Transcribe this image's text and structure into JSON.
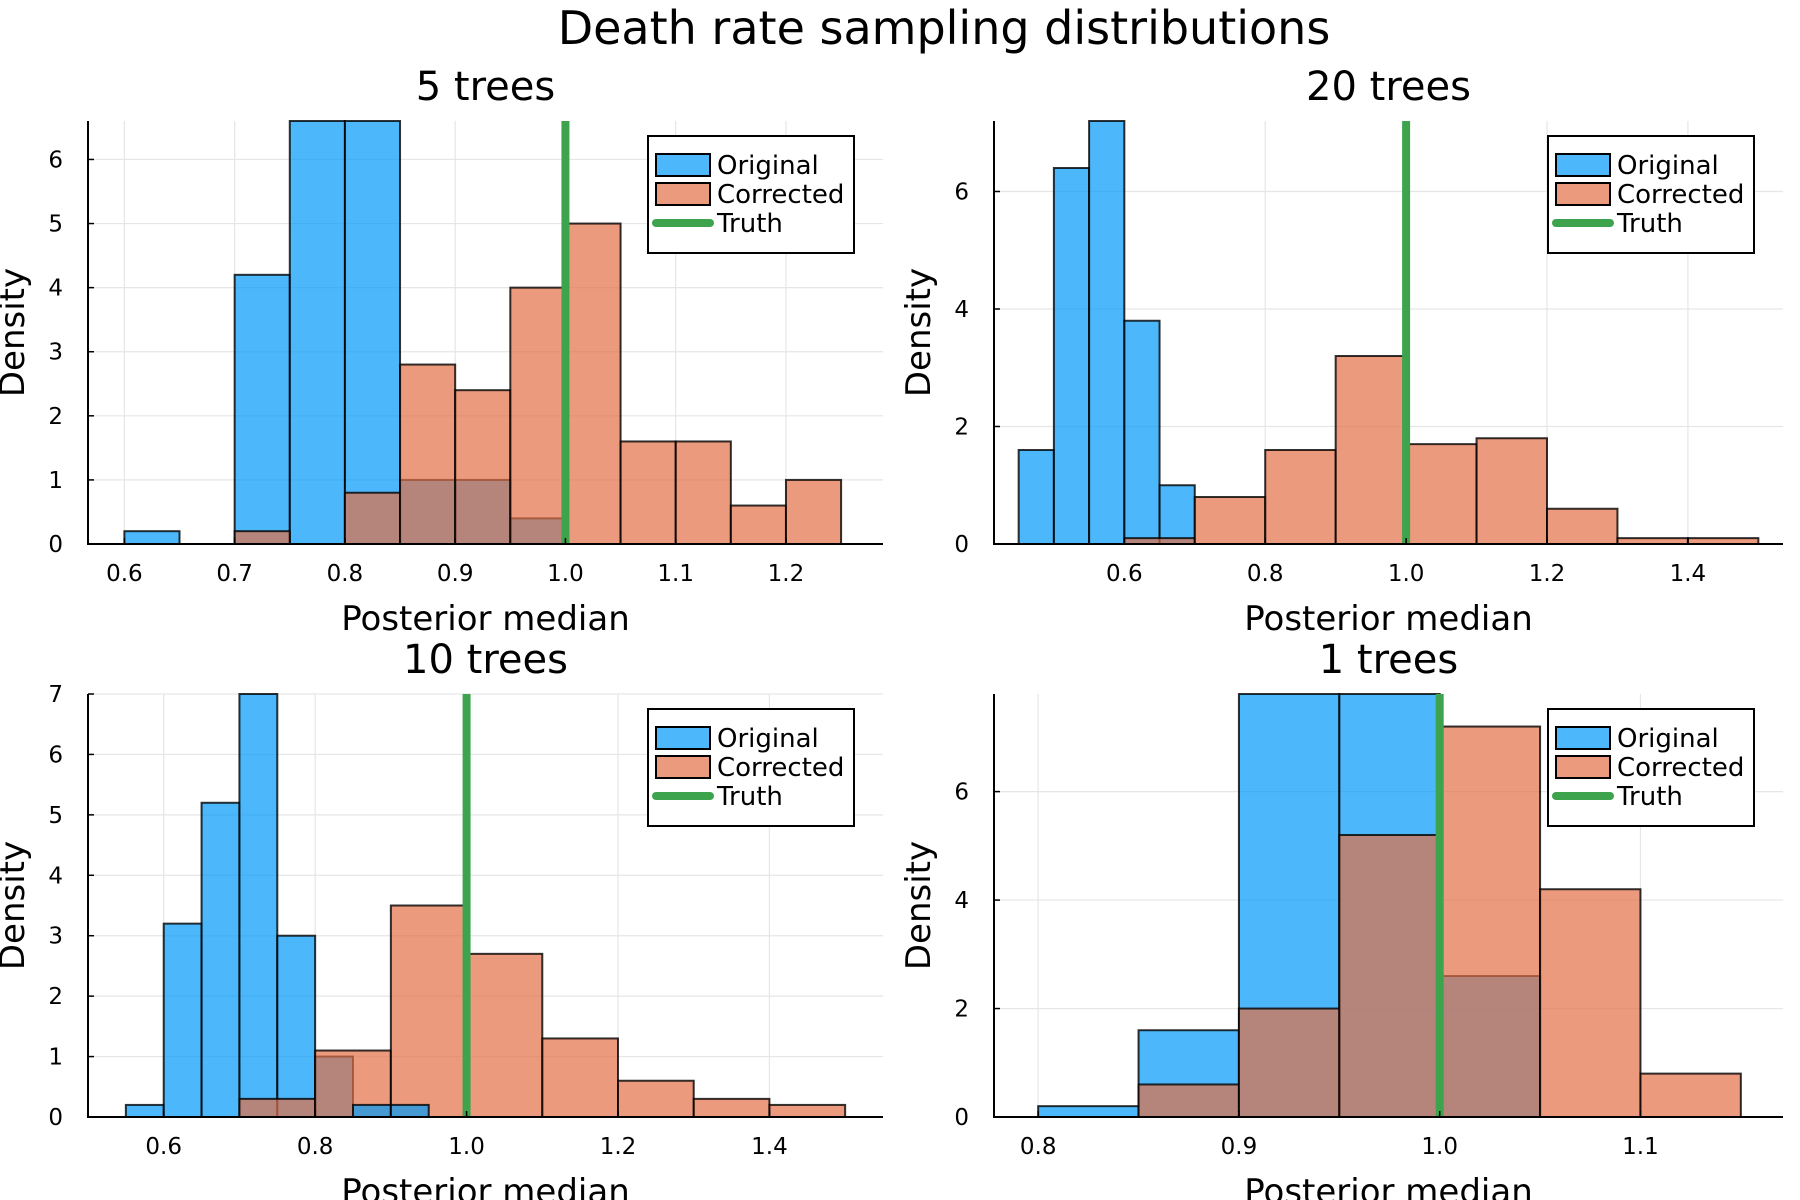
{
  "figure_title": "Death rate sampling distributions",
  "colors": {
    "original": "#009af9",
    "corrected": "#e26f46",
    "truth": "#3da44d",
    "bar_edge": "#000000",
    "grid": "#e6e6e6"
  },
  "legend": {
    "original": "Original",
    "corrected": "Corrected",
    "truth": "Truth",
    "placement": "top-right"
  },
  "chart_data": [
    {
      "type": "bar",
      "title": "5 trees",
      "xlabel": "Posterior median",
      "ylabel": "Density",
      "xlim": [
        0.567,
        1.288
      ],
      "ylim": [
        0,
        6.6
      ],
      "xticks": [
        0.6,
        0.7,
        0.8,
        0.9,
        1.0,
        1.1,
        1.2
      ],
      "xtick_labels": [
        "0.6",
        "0.7",
        "0.8",
        "0.9",
        "1.0",
        "1.1",
        "1.2"
      ],
      "yticks": [
        0,
        1,
        2,
        3,
        4,
        5,
        6
      ],
      "ytick_labels": [
        "0",
        "1",
        "2",
        "3",
        "4",
        "5",
        "6"
      ],
      "grid": true,
      "truth": 1.0,
      "series": [
        {
          "name": "Original",
          "bin_edges": [
            0.6,
            0.65,
            0.7,
            0.75,
            0.8,
            0.85,
            0.9,
            0.95,
            1.0
          ],
          "values": [
            0.2,
            0,
            4.2,
            6.6,
            6.6,
            1.0,
            1.0,
            0.4
          ]
        },
        {
          "name": "Corrected",
          "bin_edges": [
            0.7,
            0.75,
            0.8,
            0.85,
            0.9,
            0.95,
            1.0,
            1.05,
            1.1,
            1.15,
            1.2,
            1.25
          ],
          "values": [
            0.2,
            0,
            0.8,
            2.8,
            2.4,
            4.0,
            5.0,
            1.6,
            1.6,
            0.6,
            1.0
          ]
        }
      ]
    },
    {
      "type": "bar",
      "title": "20 trees",
      "xlabel": "Posterior median",
      "ylabel": "Density",
      "xlim": [
        0.415,
        1.535
      ],
      "ylim": [
        0,
        7.2
      ],
      "xticks": [
        0.6,
        0.8,
        1.0,
        1.2,
        1.4
      ],
      "xtick_labels": [
        "0.6",
        "0.8",
        "1.0",
        "1.2",
        "1.4"
      ],
      "yticks": [
        0,
        2,
        4,
        6
      ],
      "ytick_labels": [
        "0",
        "2",
        "4",
        "6"
      ],
      "grid": true,
      "truth": 1.0,
      "series": [
        {
          "name": "Original",
          "bin_edges": [
            0.45,
            0.5,
            0.55,
            0.6,
            0.65,
            0.7
          ],
          "values": [
            1.6,
            6.4,
            7.2,
            3.8,
            1.0
          ]
        },
        {
          "name": "Corrected",
          "bin_edges": [
            0.6,
            0.7,
            0.8,
            0.9,
            1.0,
            1.1,
            1.2,
            1.3,
            1.4,
            1.5
          ],
          "values": [
            0.1,
            0.8,
            1.6,
            3.2,
            1.7,
            1.8,
            0.6,
            0.1,
            0.1
          ]
        }
      ]
    },
    {
      "type": "bar",
      "title": "10 trees",
      "xlabel": "Posterior median",
      "ylabel": "Density",
      "xlim": [
        0.5,
        1.55
      ],
      "ylim": [
        0,
        7.0
      ],
      "xticks": [
        0.6,
        0.8,
        1.0,
        1.2,
        1.4
      ],
      "xtick_labels": [
        "0.6",
        "0.8",
        "1.0",
        "1.2",
        "1.4"
      ],
      "yticks": [
        0,
        1,
        2,
        3,
        4,
        5,
        6,
        7
      ],
      "ytick_labels": [
        "0",
        "1",
        "2",
        "3",
        "4",
        "5",
        "6",
        "7"
      ],
      "grid": true,
      "truth": 1.0,
      "series": [
        {
          "name": "Original",
          "bin_edges": [
            0.55,
            0.6,
            0.65,
            0.7,
            0.75,
            0.8,
            0.85
          ],
          "values": [
            0.2,
            3.2,
            5.2,
            7.0,
            3.0,
            1.0
          ]
        },
        {
          "name": "Corrected",
          "bin_edges": [
            0.7,
            0.8,
            0.9,
            1.0,
            1.1,
            1.2,
            1.3,
            1.4,
            1.5
          ],
          "values": [
            0.3,
            1.1,
            3.5,
            2.7,
            1.3,
            0.6,
            0.3,
            0.2
          ]
        },
        {
          "name": "Original",
          "bin_edges": [
            0.85,
            0.9,
            0.95
          ],
          "values": [
            0.2,
            0.2
          ]
        }
      ]
    },
    {
      "type": "bar",
      "title": "1 trees",
      "xlabel": "Posterior median",
      "ylabel": "Density",
      "xlim": [
        0.778,
        1.171
      ],
      "ylim": [
        0,
        7.8
      ],
      "xticks": [
        0.8,
        0.9,
        1.0,
        1.1
      ],
      "xtick_labels": [
        "0.8",
        "0.9",
        "1.0",
        "1.1"
      ],
      "yticks": [
        0,
        2,
        4,
        6
      ],
      "ytick_labels": [
        "0",
        "2",
        "4",
        "6"
      ],
      "grid": true,
      "truth": 1.0,
      "series": [
        {
          "name": "Original",
          "bin_edges": [
            0.8,
            0.85,
            0.9,
            0.95,
            1.0,
            1.05
          ],
          "values": [
            0.2,
            1.6,
            7.8,
            7.8,
            2.6
          ]
        },
        {
          "name": "Corrected",
          "bin_edges": [
            0.85,
            0.9,
            0.95,
            1.0,
            1.05,
            1.1,
            1.15
          ],
          "values": [
            0.6,
            2.0,
            5.2,
            7.2,
            4.2,
            0.8
          ]
        }
      ]
    }
  ]
}
